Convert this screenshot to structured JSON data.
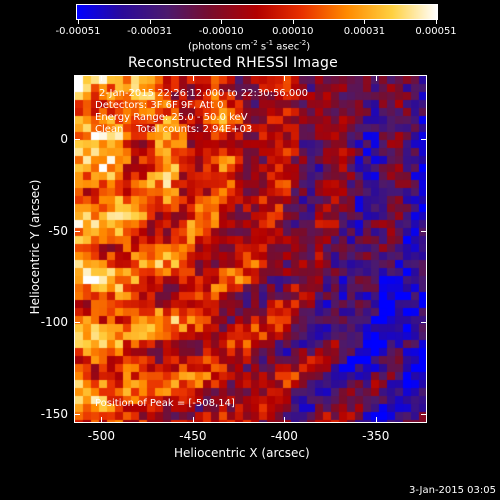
{
  "colorbar": {
    "ticks": [
      "-0.00051",
      "-0.00031",
      "-0.00010",
      "0.00010",
      "0.00031",
      "0.00051"
    ],
    "units_prefix": "(photons cm",
    "units_exp1": "-2",
    "units_mid": " s",
    "units_exp2": "-1",
    "units_mid2": " asec",
    "units_exp3": "-2",
    "units_suffix": ")",
    "stops": [
      "#0000ff",
      "#2a0a9a",
      "#4b1a6e",
      "#7a0c2a",
      "#b20000",
      "#e83000",
      "#ff8a00",
      "#ffd040",
      "#ffffff"
    ]
  },
  "title": "Reconstructed RHESSI Image",
  "annotations": {
    "time_range": "2-Jan-2015 22:26:12.000 to 22:30:56.000",
    "detectors": "Detectors: 3F 6F 9F, Att 0",
    "energy": "Energy Range: 25.0 - 50.0 keV",
    "clean": "Clean    Total counts: 2.94E+03",
    "peak": "Position of Peak = [-508,14]"
  },
  "axes": {
    "xlabel": "Heliocentric X (arcsec)",
    "ylabel": "Heliocentric Y (arcsec)",
    "xticks": [
      "-500",
      "-450",
      "-400",
      "-350"
    ],
    "yticks": [
      "0",
      "-50",
      "-100",
      "-150"
    ],
    "xrange": [
      -515,
      -322
    ],
    "yrange": [
      -155,
      35
    ]
  },
  "timestamp": "3-Jan-2015 03:05"
}
